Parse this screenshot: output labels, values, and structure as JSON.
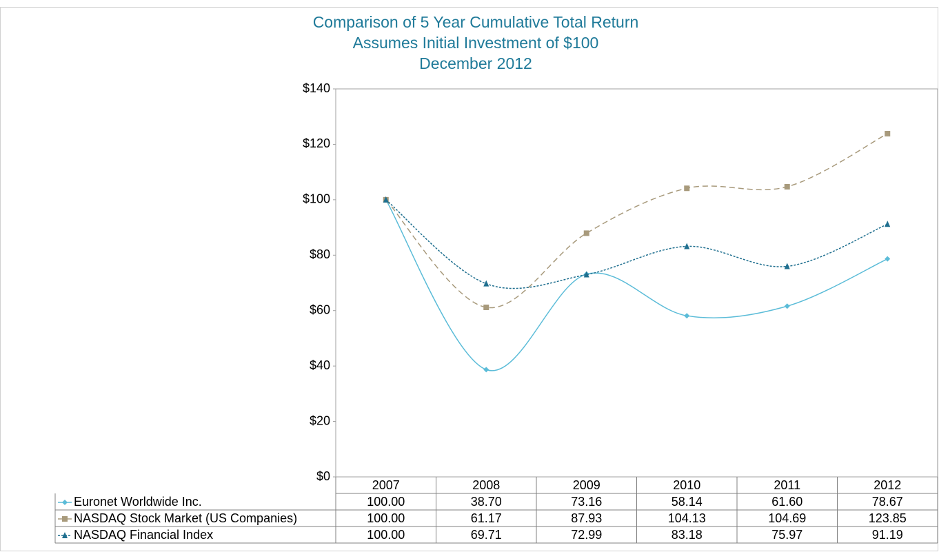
{
  "chart_data": {
    "type": "line",
    "title": "Comparison of 5 Year Cumulative Total Return",
    "subtitle": [
      "Assumes Initial Investment of $100",
      "December 2012"
    ],
    "categories": [
      "2007",
      "2008",
      "2009",
      "2010",
      "2011",
      "2012"
    ],
    "series": [
      {
        "name": "Euronet Worldwide Inc.",
        "color": "#5bbcd8",
        "dash": "none",
        "marker": "diamond",
        "values": [
          100,
          38.7,
          73.16,
          58.14,
          61.6,
          78.67
        ],
        "value_labels": [
          "100.00",
          "38.70",
          "73.16",
          "58.14",
          "61.60",
          "78.67"
        ]
      },
      {
        "name": "NASDAQ Stock Market (US Companies)",
        "color": "#a89a7c",
        "dash": "8 5",
        "marker": "square",
        "values": [
          100,
          61.17,
          87.93,
          104.13,
          104.69,
          123.85
        ],
        "value_labels": [
          "100.00",
          "61.17",
          "87.93",
          "104.13",
          "104.69",
          "123.85"
        ]
      },
      {
        "name": "NASDAQ Financial Index",
        "color": "#1f6f8f",
        "dash": "3 2",
        "marker": "triangle",
        "values": [
          100,
          69.71,
          72.99,
          83.18,
          75.97,
          91.19
        ],
        "value_labels": [
          "100.00",
          "69.71",
          "72.99",
          "83.18",
          "75.97",
          "91.19"
        ]
      }
    ],
    "ylim": [
      0,
      140
    ],
    "yticks": [
      {
        "value": 0,
        "label": "$0"
      },
      {
        "value": 20,
        "label": "$20"
      },
      {
        "value": 40,
        "label": "$40"
      },
      {
        "value": 60,
        "label": "$60"
      },
      {
        "value": 80,
        "label": "$80"
      },
      {
        "value": 100,
        "label": "$100"
      },
      {
        "value": 120,
        "label": "$120"
      },
      {
        "value": 140,
        "label": "$140"
      }
    ],
    "grid": false
  }
}
